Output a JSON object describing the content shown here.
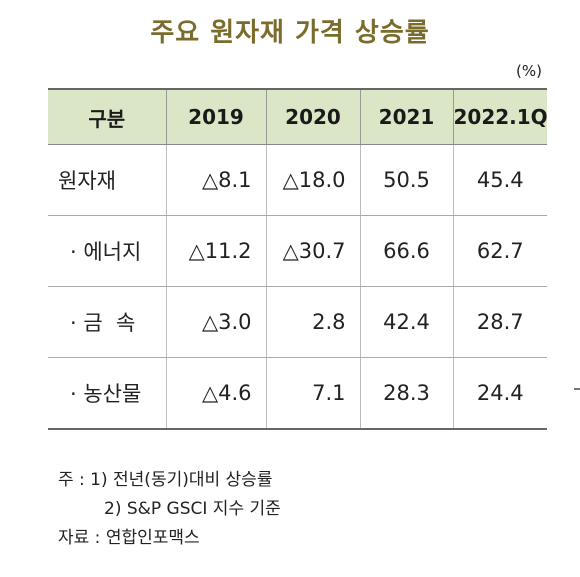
{
  "title": "주요 원자재 가격 상승률",
  "unit": "(%)",
  "table": {
    "headers": [
      "구분",
      "2019",
      "2020",
      "2021",
      "2022.1Q"
    ],
    "rows": [
      [
        "원자재",
        "△8.1",
        "△18.0",
        "50.5",
        "45.4"
      ],
      [
        "· 에너지",
        "△11.2",
        "△30.7",
        "66.6",
        "62.7"
      ],
      [
        "· 금  속",
        "△3.0",
        "2.8",
        "42.4",
        "28.7"
      ],
      [
        "· 농산물",
        "△4.6",
        "7.1",
        "28.3",
        "24.4"
      ]
    ]
  },
  "notes": {
    "note1": "주 : 1) 전년(동기)대비 상승률",
    "note2": "2) S&P GSCI 지수 기준",
    "source": "자료 : 연합인포맥스"
  }
}
